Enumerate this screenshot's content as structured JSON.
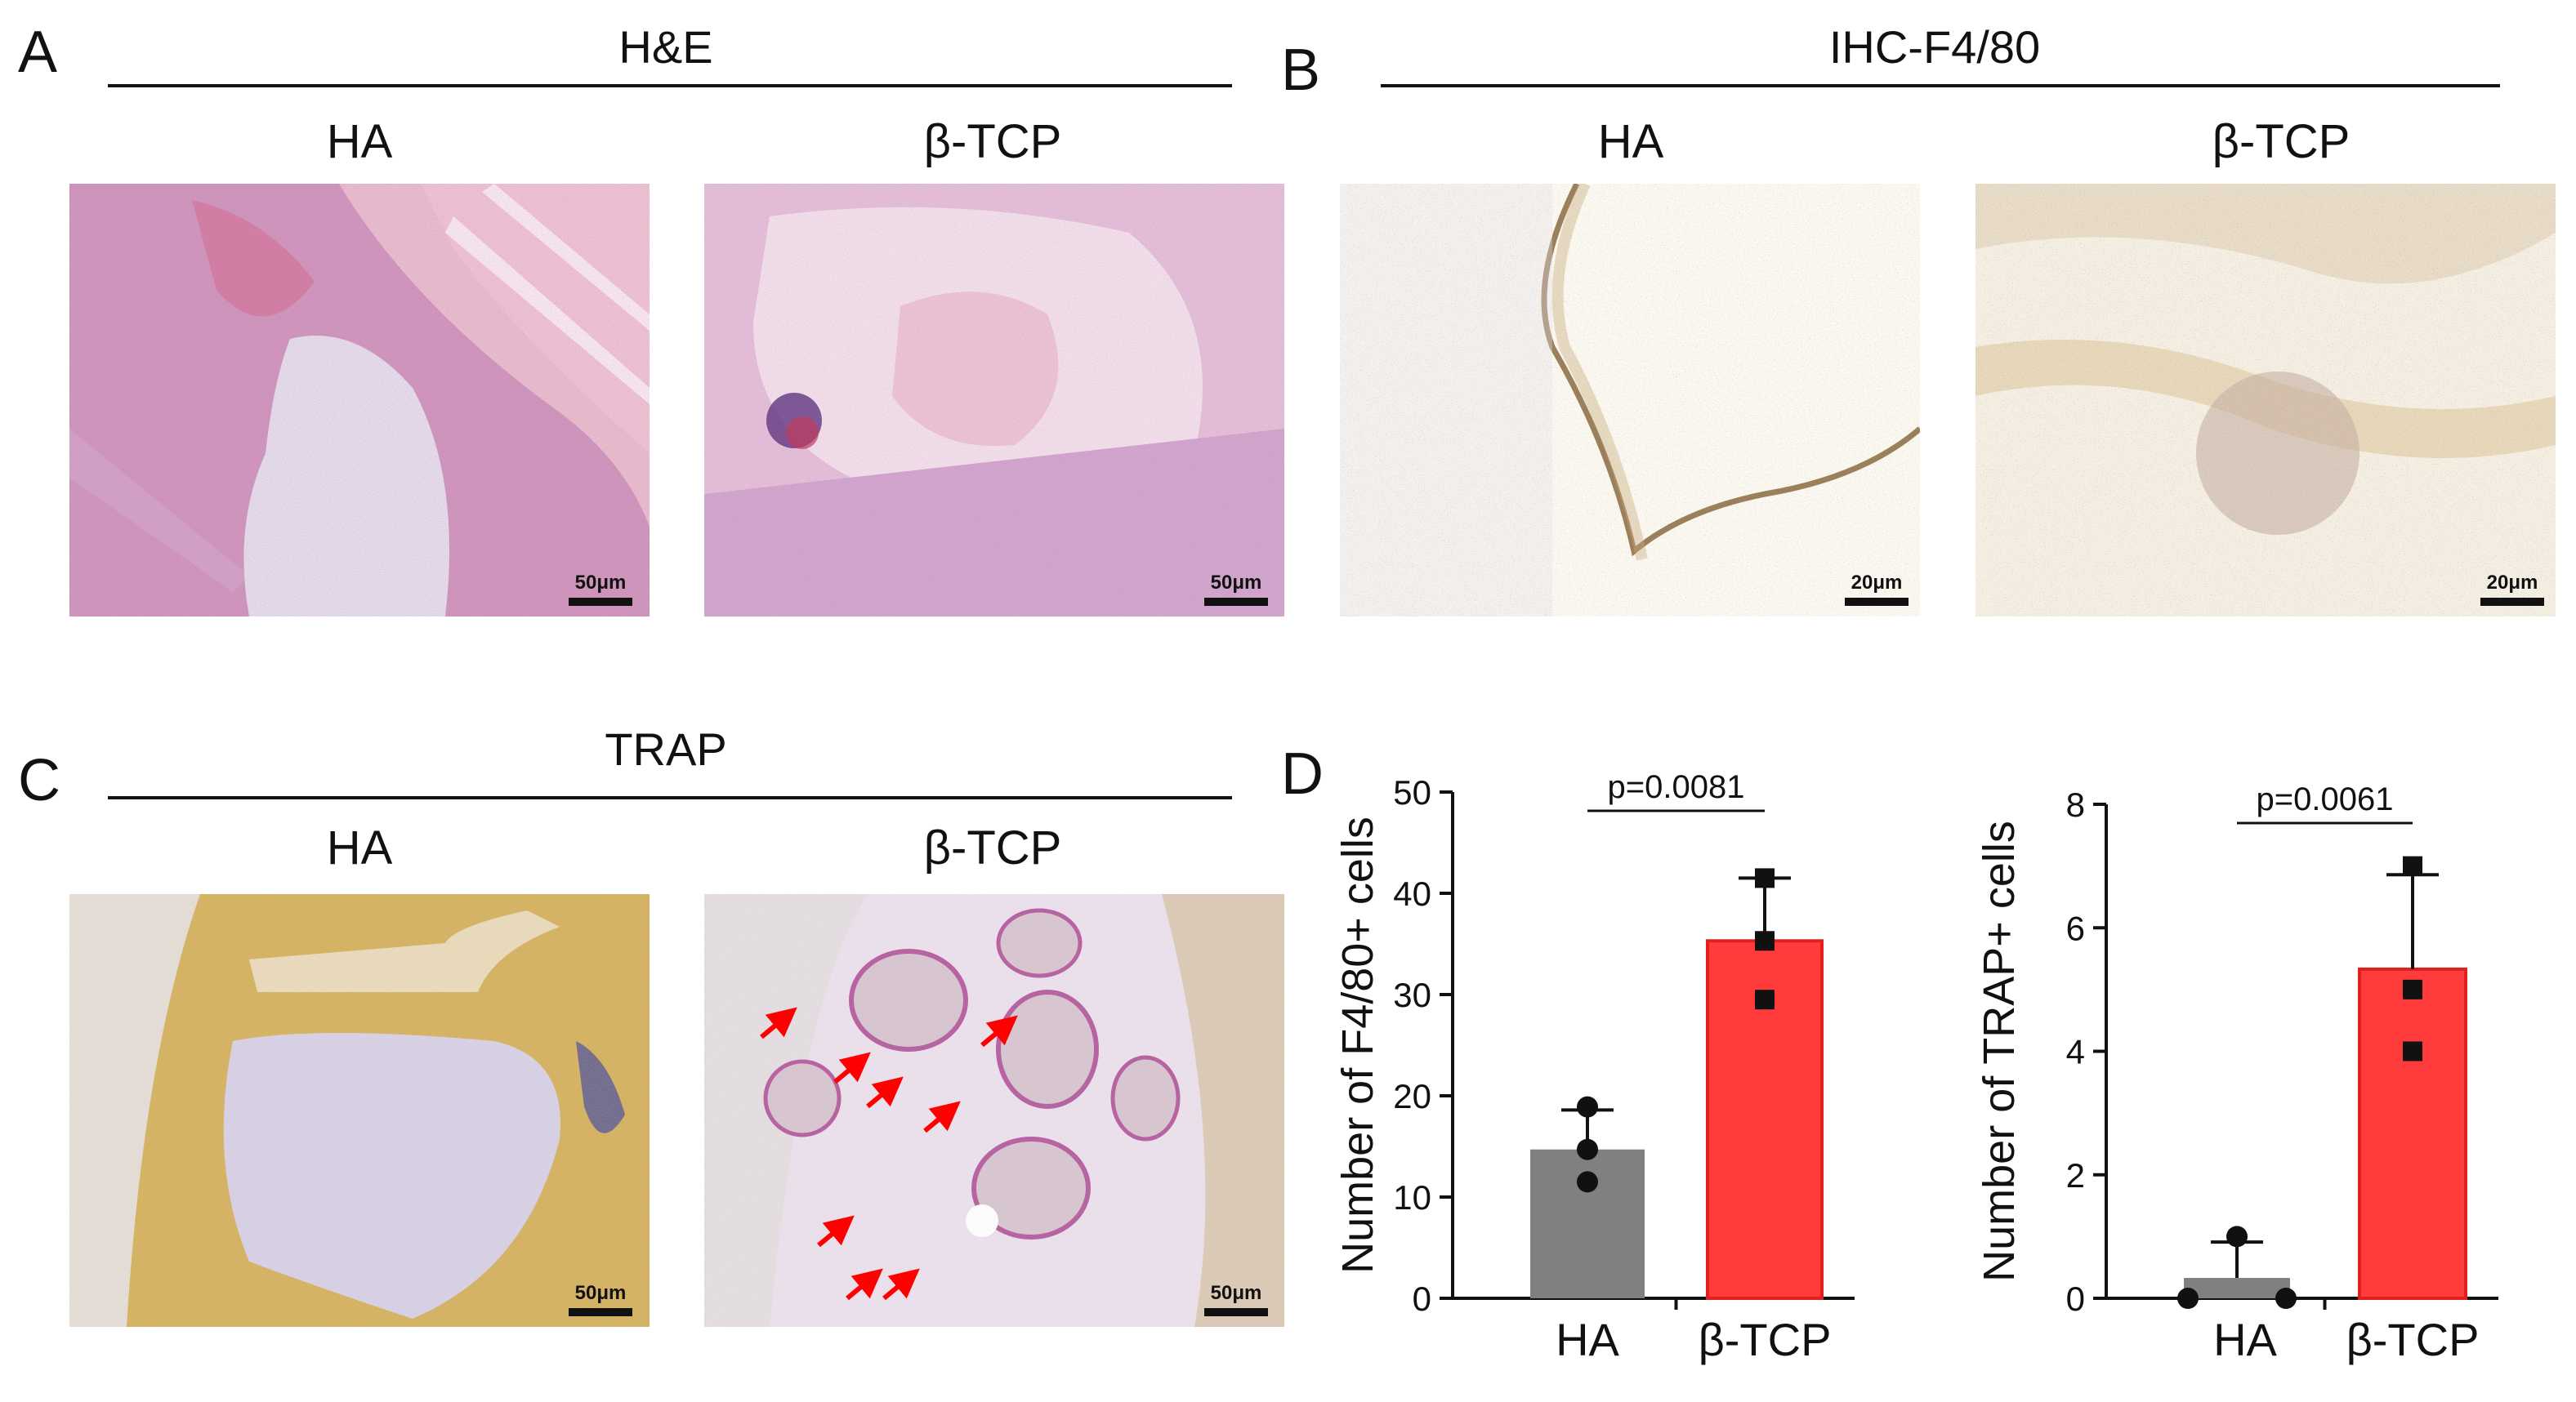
{
  "panels": {
    "A": {
      "letter": "A",
      "title": "H&E",
      "groups": [
        "HA",
        "β-TCP"
      ],
      "scales": [
        "50μm",
        "50μm"
      ]
    },
    "B": {
      "letter": "B",
      "title": "IHC-F4/80",
      "groups": [
        "HA",
        "β-TCP"
      ],
      "scales": [
        "20μm",
        "20μm"
      ]
    },
    "C": {
      "letter": "C",
      "title": "TRAP",
      "groups": [
        "HA",
        "β-TCP"
      ],
      "scales": [
        "50μm",
        "50μm"
      ]
    },
    "D": {
      "letter": "D"
    }
  },
  "colors": {
    "ha_bar": "#808080",
    "tcp_bar": "#ff3b3b",
    "tcp_edge": "#e02020",
    "he_pink": "#e9b7c6",
    "he_purple": "#8a4f9e",
    "ihc_bg": "#fbf8ef",
    "trap_yellow": "#d8b056",
    "trap_pink": "#e8c3dc",
    "arrow_red": "#ff0000"
  },
  "chart_data": [
    {
      "type": "bar",
      "categories": [
        "HA",
        "β-TCP"
      ],
      "values": [
        14.7,
        35.3
      ],
      "errors": [
        3.9,
        6.2
      ],
      "points": [
        [
          18.9,
          14.7,
          11.5
        ],
        [
          41.5,
          35.3,
          29.5
        ]
      ],
      "ylabel": "Number of F4/80+ cells",
      "ylim": [
        0,
        50
      ],
      "yticks": [
        0,
        10,
        20,
        30,
        40,
        50
      ],
      "p_value": "p=0.0081"
    },
    {
      "type": "bar",
      "categories": [
        "HA",
        "β-TCP"
      ],
      "values": [
        0.33,
        5.33
      ],
      "errors": [
        0.58,
        1.53
      ],
      "points": [
        [
          1.0,
          0.0,
          0.0
        ],
        [
          7.0,
          5.0,
          4.0
        ]
      ],
      "ylabel": "Number of TRAP+ cells",
      "ylim": [
        0,
        8
      ],
      "yticks": [
        0,
        2,
        4,
        6,
        8
      ],
      "p_value": "p=0.0061"
    }
  ]
}
